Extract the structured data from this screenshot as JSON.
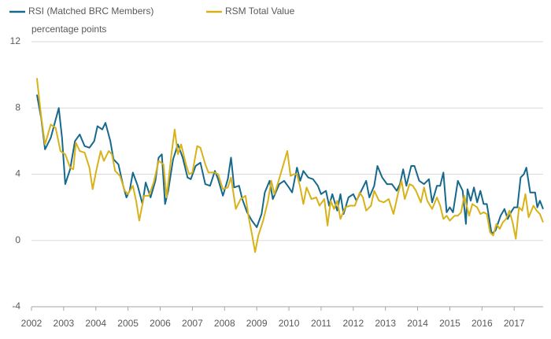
{
  "chart_data": {
    "type": "line",
    "y_label": "percentage points",
    "xlim": [
      2002,
      2017.9
    ],
    "ylim": [
      -4,
      12
    ],
    "xticks": [
      2002,
      2003,
      2004,
      2005,
      2006,
      2007,
      2008,
      2009,
      2010,
      2011,
      2012,
      2013,
      2014,
      2015,
      2016,
      2017
    ],
    "yticks": [
      -4,
      0,
      4,
      8,
      12
    ],
    "grid": true,
    "series": [
      {
        "name": "RSI (Matched BRC Members)",
        "color": "#17698c",
        "x": [
          2002.17,
          2002.3,
          2002.42,
          2002.6,
          2002.75,
          2002.85,
          2002.95,
          2003.05,
          2003.2,
          2003.35,
          2003.5,
          2003.65,
          2003.8,
          2003.95,
          2004.05,
          2004.2,
          2004.3,
          2004.45,
          2004.55,
          2004.7,
          2004.85,
          2004.95,
          2005.05,
          2005.15,
          2005.3,
          2005.45,
          2005.55,
          2005.7,
          2005.85,
          2005.95,
          2006.05,
          2006.15,
          2006.25,
          2006.4,
          2006.55,
          2006.7,
          2006.85,
          2006.95,
          2007.1,
          2007.25,
          2007.4,
          2007.55,
          2007.7,
          2007.8,
          2007.95,
          2008.1,
          2008.2,
          2008.3,
          2008.45,
          2008.55,
          2008.7,
          2008.85,
          2009.0,
          2009.15,
          2009.25,
          2009.4,
          2009.5,
          2009.7,
          2009.85,
          2010.0,
          2010.1,
          2010.25,
          2010.35,
          2010.45,
          2010.6,
          2010.75,
          2010.9,
          2011.0,
          2011.15,
          2011.25,
          2011.35,
          2011.5,
          2011.6,
          2011.7,
          2011.85,
          2012.0,
          2012.1,
          2012.25,
          2012.4,
          2012.5,
          2012.65,
          2012.75,
          2012.9,
          2013.05,
          2013.2,
          2013.35,
          2013.45,
          2013.55,
          2013.65,
          2013.8,
          2013.9,
          2014.05,
          2014.2,
          2014.35,
          2014.45,
          2014.6,
          2014.7,
          2014.8,
          2014.9,
          2015.0,
          2015.1,
          2015.25,
          2015.4,
          2015.5,
          2015.55,
          2015.65,
          2015.75,
          2015.85,
          2015.95,
          2016.05,
          2016.15,
          2016.3,
          2016.42,
          2016.58,
          2016.7,
          2016.8,
          2016.9,
          2017.0,
          2017.1,
          2017.2,
          2017.3,
          2017.38,
          2017.5,
          2017.65,
          2017.72,
          2017.8,
          2017.9
        ],
        "values": [
          8.8,
          7.4,
          5.5,
          6.2,
          7.3,
          8.0,
          6.2,
          3.4,
          4.3,
          6.0,
          6.4,
          5.7,
          5.6,
          6.0,
          6.9,
          6.7,
          7.1,
          6.0,
          4.9,
          4.6,
          3.3,
          2.6,
          3.0,
          4.1,
          3.3,
          2.2,
          3.5,
          2.6,
          3.6,
          5.0,
          5.2,
          2.2,
          3.0,
          4.9,
          5.8,
          5.0,
          3.8,
          3.7,
          4.5,
          4.7,
          3.4,
          3.3,
          4.2,
          3.7,
          2.7,
          3.7,
          5.0,
          3.2,
          3.3,
          2.5,
          1.7,
          1.2,
          0.8,
          1.6,
          2.9,
          3.6,
          2.5,
          3.4,
          3.6,
          3.2,
          2.9,
          4.4,
          3.6,
          4.2,
          3.8,
          3.7,
          3.3,
          2.8,
          3.0,
          2.1,
          2.8,
          1.8,
          2.8,
          1.6,
          2.6,
          2.8,
          2.4,
          3.0,
          3.6,
          2.6,
          3.3,
          4.5,
          3.8,
          3.4,
          3.4,
          3.0,
          3.4,
          4.3,
          3.3,
          4.5,
          4.5,
          3.6,
          3.4,
          3.7,
          2.3,
          3.3,
          3.3,
          4.1,
          1.7,
          2.0,
          1.7,
          3.6,
          3.0,
          1.0,
          3.1,
          2.4,
          3.2,
          2.3,
          3.0,
          2.2,
          2.2,
          0.4,
          0.6,
          1.5,
          1.9,
          1.3,
          1.7,
          2.0,
          2.0,
          3.8,
          4.0,
          4.4,
          2.9,
          2.9,
          2.0,
          2.4,
          1.9
        ]
      },
      {
        "name": "RSM Total Value",
        "color": "#d8b218",
        "x": [
          2002.17,
          2002.3,
          2002.42,
          2002.6,
          2002.75,
          2002.9,
          2003.05,
          2003.2,
          2003.3,
          2003.38,
          2003.5,
          2003.65,
          2003.8,
          2003.9,
          2004.0,
          2004.15,
          2004.25,
          2004.4,
          2004.5,
          2004.6,
          2004.75,
          2004.9,
          2005.0,
          2005.15,
          2005.25,
          2005.35,
          2005.5,
          2005.65,
          2005.8,
          2005.95,
          2006.1,
          2006.2,
          2006.35,
          2006.45,
          2006.55,
          2006.65,
          2006.8,
          2006.9,
          2007.0,
          2007.15,
          2007.25,
          2007.4,
          2007.5,
          2007.7,
          2007.8,
          2007.95,
          2008.1,
          2008.2,
          2008.35,
          2008.5,
          2008.65,
          2008.75,
          2008.85,
          2008.95,
          2009.05,
          2009.2,
          2009.35,
          2009.45,
          2009.55,
          2009.65,
          2009.8,
          2009.95,
          2010.05,
          2010.15,
          2010.25,
          2010.35,
          2010.45,
          2010.55,
          2010.7,
          2010.85,
          2010.95,
          2011.1,
          2011.2,
          2011.3,
          2011.4,
          2011.5,
          2011.6,
          2011.75,
          2011.9,
          2012.05,
          2012.2,
          2012.3,
          2012.4,
          2012.55,
          2012.65,
          2012.8,
          2012.95,
          2013.1,
          2013.25,
          2013.4,
          2013.5,
          2013.6,
          2013.75,
          2013.85,
          2013.95,
          2014.1,
          2014.2,
          2014.3,
          2014.45,
          2014.6,
          2014.7,
          2014.8,
          2014.9,
          2015.0,
          2015.15,
          2015.25,
          2015.35,
          2015.45,
          2015.6,
          2015.7,
          2015.85,
          2015.95,
          2016.05,
          2016.15,
          2016.25,
          2016.35,
          2016.45,
          2016.55,
          2016.65,
          2016.75,
          2016.85,
          2016.95,
          2017.05,
          2017.15,
          2017.25,
          2017.35,
          2017.45,
          2017.6,
          2017.7,
          2017.8,
          2017.9
        ],
        "values": [
          9.8,
          7.5,
          5.8,
          7.0,
          6.8,
          5.4,
          5.2,
          4.4,
          4.3,
          5.9,
          5.4,
          5.3,
          4.4,
          3.1,
          4.1,
          5.4,
          4.8,
          5.4,
          5.2,
          4.2,
          3.9,
          3.0,
          2.8,
          3.3,
          2.4,
          1.2,
          2.7,
          2.7,
          3.5,
          4.8,
          4.6,
          2.6,
          5.2,
          6.7,
          5.2,
          5.8,
          4.6,
          4.0,
          4.1,
          5.7,
          5.6,
          4.6,
          4.1,
          4.1,
          4.0,
          3.1,
          3.2,
          3.8,
          1.9,
          2.5,
          2.7,
          1.4,
          0.4,
          -0.7,
          0.3,
          1.2,
          2.4,
          3.6,
          2.8,
          3.4,
          4.4,
          5.4,
          3.9,
          4.0,
          4.0,
          3.2,
          2.2,
          3.2,
          2.5,
          2.6,
          2.1,
          2.5,
          0.9,
          2.4,
          1.9,
          2.4,
          1.3,
          2.0,
          2.1,
          2.1,
          2.9,
          2.6,
          1.8,
          2.1,
          3.0,
          2.4,
          2.3,
          2.5,
          1.6,
          2.9,
          3.6,
          2.5,
          3.4,
          3.3,
          3.0,
          2.3,
          3.2,
          2.4,
          1.9,
          2.6,
          2.1,
          1.3,
          1.5,
          1.2,
          1.5,
          1.5,
          1.7,
          2.7,
          1.5,
          2.2,
          2.0,
          1.6,
          1.7,
          1.6,
          0.5,
          0.3,
          1.0,
          0.7,
          1.1,
          1.3,
          1.8,
          1.1,
          0.1,
          2.0,
          1.8,
          2.8,
          1.4,
          2.1,
          1.8,
          1.6,
          1.1
        ]
      }
    ]
  }
}
